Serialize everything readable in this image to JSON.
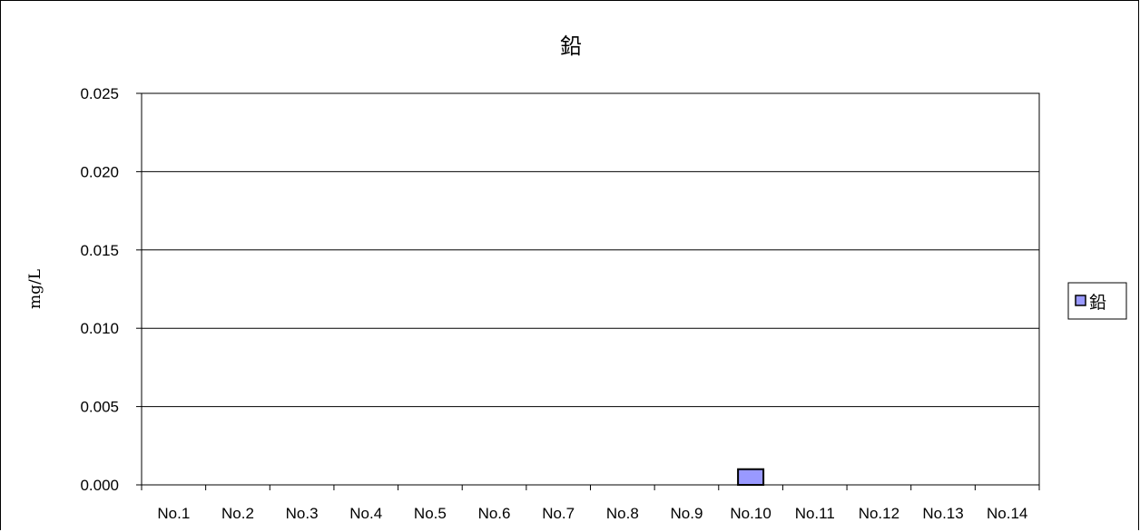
{
  "chart_data": {
    "type": "bar",
    "title": "鉛",
    "xlabel": "",
    "ylabel": "mg/L",
    "categories": [
      "No.1",
      "No.2",
      "No.3",
      "No.4",
      "No.5",
      "No.6",
      "No.7",
      "No.8",
      "No.9",
      "No.10",
      "No.11",
      "No.12",
      "No.13",
      "No.14"
    ],
    "series": [
      {
        "name": "鉛",
        "values": [
          0,
          0,
          0,
          0,
          0,
          0,
          0,
          0,
          0,
          0.001,
          0,
          0,
          0,
          0
        ],
        "color": "#9999ff"
      }
    ],
    "ylim": [
      0,
      0.025
    ],
    "yticks": [
      "0.000",
      "0.005",
      "0.010",
      "0.015",
      "0.020",
      "0.025"
    ],
    "grid": true,
    "legend": "right"
  }
}
